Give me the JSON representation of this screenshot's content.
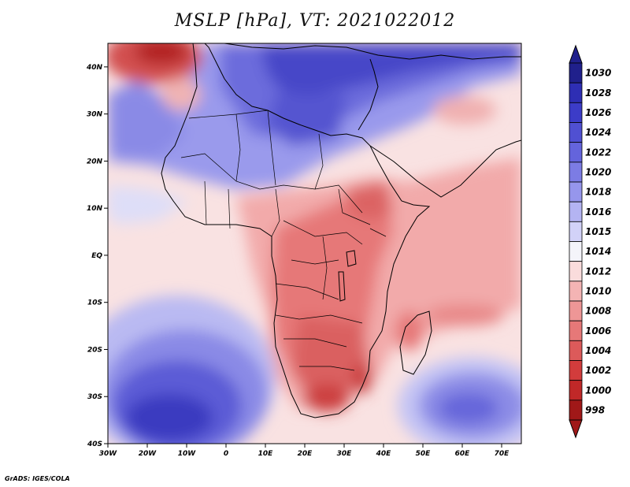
{
  "title": "MSLP [hPa], VT: 2021022012",
  "footer": "GrADS: IGES/COLA",
  "map": {
    "lon_range": [
      -30,
      75
    ],
    "lat_range": [
      -40,
      45
    ],
    "lon_ticks": [
      {
        "value": -30,
        "label": "30W"
      },
      {
        "value": -20,
        "label": "20W"
      },
      {
        "value": -10,
        "label": "10W"
      },
      {
        "value": 0,
        "label": "0"
      },
      {
        "value": 10,
        "label": "10E"
      },
      {
        "value": 20,
        "label": "20E"
      },
      {
        "value": 30,
        "label": "30E"
      },
      {
        "value": 40,
        "label": "40E"
      },
      {
        "value": 50,
        "label": "50E"
      },
      {
        "value": 60,
        "label": "60E"
      },
      {
        "value": 70,
        "label": "70E"
      }
    ],
    "lat_ticks": [
      {
        "value": 40,
        "label": "40N"
      },
      {
        "value": 30,
        "label": "30N"
      },
      {
        "value": 20,
        "label": "20N"
      },
      {
        "value": 10,
        "label": "10N"
      },
      {
        "value": 0,
        "label": "EQ"
      },
      {
        "value": -10,
        "label": "10S"
      },
      {
        "value": -20,
        "label": "20S"
      },
      {
        "value": -30,
        "label": "30S"
      },
      {
        "value": -40,
        "label": "40S"
      }
    ]
  },
  "colorbar": {
    "levels": [
      "1030",
      "1028",
      "1026",
      "1024",
      "1022",
      "1020",
      "1018",
      "1016",
      "1015",
      "1014",
      "1012",
      "1010",
      "1008",
      "1006",
      "1004",
      "1002",
      "1000",
      "998"
    ],
    "colors": [
      "#20208c",
      "#2e2eb4",
      "#3c3cc8",
      "#5050d2",
      "#6464dc",
      "#7c7ce4",
      "#9696ec",
      "#b4b4f2",
      "#d2d2f8",
      "#f4f4fa",
      "#fadcdc",
      "#f4b4b4",
      "#ee9696",
      "#e67878",
      "#dc5a5a",
      "#d23c3c",
      "#c02828",
      "#a01818"
    ]
  }
}
